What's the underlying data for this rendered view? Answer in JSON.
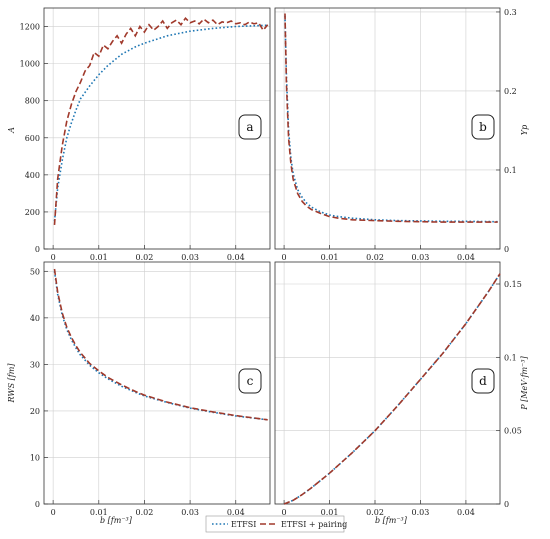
{
  "legend": [
    {
      "label": "ETFSI",
      "color": "#1f77b4",
      "style": "dotted"
    },
    {
      "label": "ETFSI + pairing",
      "color": "#a0392b",
      "style": "dashed"
    }
  ],
  "xlabel_left": "b [fm⁻³]",
  "xlabel_right": "b [fm⁻³]",
  "chart_data": [
    {
      "type": "line",
      "badge": "a",
      "ylabel": "A",
      "xlim": [
        -0.002,
        0.0475
      ],
      "ylim": [
        0,
        1300
      ],
      "xticks": [
        0,
        0.01,
        0.02,
        0.03,
        0.04
      ],
      "xtick_labels": [
        "0",
        "0.01",
        "0.02",
        "0.03",
        "0.04"
      ],
      "yticks": [
        0,
        200,
        400,
        600,
        800,
        1000,
        1200
      ],
      "ytick_labels": [
        "0",
        "200",
        "400",
        "600",
        "800",
        "1000",
        "1200"
      ],
      "series": [
        {
          "name": "ETFSI",
          "x": [
            0.0003,
            0.001,
            0.002,
            0.003,
            0.004,
            0.005,
            0.006,
            0.008,
            0.01,
            0.012,
            0.015,
            0.018,
            0.02,
            0.025,
            0.03,
            0.035,
            0.04,
            0.045,
            0.047
          ],
          "y": [
            150,
            330,
            480,
            600,
            680,
            750,
            810,
            880,
            940,
            990,
            1050,
            1090,
            1110,
            1150,
            1175,
            1190,
            1200,
            1205,
            1207
          ]
        },
        {
          "name": "ETFSI + pairing",
          "x": [
            0.0003,
            0.001,
            0.002,
            0.003,
            0.004,
            0.005,
            0.006,
            0.007,
            0.008,
            0.009,
            0.01,
            0.011,
            0.012,
            0.013,
            0.014,
            0.015,
            0.016,
            0.017,
            0.018,
            0.019,
            0.02,
            0.021,
            0.022,
            0.023,
            0.024,
            0.025,
            0.026,
            0.027,
            0.028,
            0.029,
            0.03,
            0.031,
            0.032,
            0.033,
            0.034,
            0.035,
            0.036,
            0.037,
            0.038,
            0.039,
            0.04,
            0.041,
            0.042,
            0.043,
            0.044,
            0.045,
            0.046,
            0.047
          ],
          "y": [
            130,
            380,
            560,
            690,
            780,
            850,
            900,
            960,
            990,
            1060,
            1040,
            1100,
            1080,
            1120,
            1150,
            1110,
            1160,
            1190,
            1150,
            1200,
            1170,
            1210,
            1180,
            1200,
            1230,
            1190,
            1220,
            1235,
            1210,
            1245,
            1220,
            1230,
            1215,
            1240,
            1220,
            1235,
            1210,
            1225,
            1220,
            1230,
            1215,
            1220,
            1210,
            1225,
            1215,
            1220,
            1180,
            1210
          ]
        }
      ]
    },
    {
      "type": "line",
      "badge": "b",
      "ylabel": "Yp",
      "xlim": [
        -0.002,
        0.0475
      ],
      "ylim": [
        0,
        0.305
      ],
      "xticks": [
        0,
        0.01,
        0.02,
        0.03,
        0.04
      ],
      "xtick_labels": [
        "0",
        "0.01",
        "0.02",
        "0.03",
        "0.04"
      ],
      "yticks": [
        0,
        0.1,
        0.2,
        0.3
      ],
      "ytick_labels": [
        "0",
        "0.1",
        "0.2",
        "0.3"
      ],
      "series": [
        {
          "name": "ETFSI",
          "x": [
            0.0002,
            0.0005,
            0.001,
            0.0015,
            0.002,
            0.003,
            0.004,
            0.005,
            0.006,
            0.008,
            0.01,
            0.012,
            0.015,
            0.02,
            0.025,
            0.03,
            0.035,
            0.04,
            0.047
          ],
          "y": [
            0.295,
            0.22,
            0.15,
            0.115,
            0.095,
            0.075,
            0.065,
            0.058,
            0.053,
            0.047,
            0.043,
            0.041,
            0.039,
            0.037,
            0.036,
            0.0355,
            0.035,
            0.035,
            0.0345
          ]
        },
        {
          "name": "ETFSI + pairing",
          "x": [
            0.0002,
            0.0005,
            0.001,
            0.0015,
            0.002,
            0.003,
            0.004,
            0.005,
            0.006,
            0.008,
            0.01,
            0.012,
            0.015,
            0.02,
            0.025,
            0.03,
            0.035,
            0.04,
            0.047
          ],
          "y": [
            0.298,
            0.21,
            0.14,
            0.108,
            0.088,
            0.07,
            0.06,
            0.054,
            0.05,
            0.045,
            0.041,
            0.039,
            0.037,
            0.036,
            0.035,
            0.0345,
            0.034,
            0.034,
            0.034
          ]
        }
      ]
    },
    {
      "type": "line",
      "badge": "c",
      "ylabel": "RWS [fm]",
      "xlim": [
        -0.002,
        0.0475
      ],
      "ylim": [
        0,
        52
      ],
      "xticks": [
        0,
        0.01,
        0.02,
        0.03,
        0.04
      ],
      "xtick_labels": [
        "0",
        "0.01",
        "0.02",
        "0.03",
        "0.04"
      ],
      "yticks": [
        0,
        10,
        20,
        30,
        40,
        50
      ],
      "ytick_labels": [
        "0",
        "10",
        "20",
        "30",
        "40",
        "50"
      ],
      "series": [
        {
          "name": "ETFSI",
          "x": [
            0.0003,
            0.001,
            0.002,
            0.003,
            0.004,
            0.005,
            0.006,
            0.008,
            0.01,
            0.012,
            0.015,
            0.018,
            0.02,
            0.025,
            0.03,
            0.035,
            0.04,
            0.047
          ],
          "y": [
            50,
            45,
            40.5,
            37.5,
            35.3,
            33.5,
            32.0,
            29.8,
            28.2,
            26.9,
            25.3,
            24.0,
            23.2,
            21.8,
            20.6,
            19.7,
            18.9,
            18.1
          ]
        },
        {
          "name": "ETFSI + pairing",
          "x": [
            0.0003,
            0.001,
            0.002,
            0.003,
            0.004,
            0.005,
            0.006,
            0.008,
            0.01,
            0.012,
            0.015,
            0.018,
            0.02,
            0.025,
            0.03,
            0.035,
            0.04,
            0.047
          ],
          "y": [
            50.5,
            45.5,
            41,
            38,
            35.8,
            34.0,
            32.5,
            30.2,
            28.6,
            27.2,
            25.6,
            24.2,
            23.4,
            21.9,
            20.7,
            19.8,
            19.0,
            18.1
          ]
        }
      ]
    },
    {
      "type": "line",
      "badge": "d",
      "ylabel": "P [MeV·fm⁻³]",
      "xlim": [
        -0.002,
        0.0475
      ],
      "ylim": [
        0,
        0.165
      ],
      "xticks": [
        0,
        0.01,
        0.02,
        0.03,
        0.04
      ],
      "xtick_labels": [
        "0",
        "0.01",
        "0.02",
        "0.03",
        "0.04"
      ],
      "yticks": [
        0,
        0.05,
        0.1,
        0.15
      ],
      "ytick_labels": [
        "0",
        "0.05",
        "0.1",
        "0.15"
      ],
      "series": [
        {
          "name": "ETFSI",
          "x": [
            0,
            0.002,
            0.004,
            0.006,
            0.008,
            0.01,
            0.015,
            0.02,
            0.025,
            0.03,
            0.035,
            0.04,
            0.045,
            0.0475
          ],
          "y": [
            0,
            0.0025,
            0.0065,
            0.011,
            0.016,
            0.021,
            0.035,
            0.05,
            0.067,
            0.085,
            0.103,
            0.123,
            0.145,
            0.157
          ]
        },
        {
          "name": "ETFSI + pairing",
          "x": [
            0,
            0.002,
            0.004,
            0.006,
            0.008,
            0.01,
            0.015,
            0.02,
            0.025,
            0.03,
            0.035,
            0.04,
            0.045,
            0.0475
          ],
          "y": [
            0,
            0.0025,
            0.0065,
            0.011,
            0.016,
            0.021,
            0.035,
            0.05,
            0.067,
            0.085,
            0.103,
            0.123,
            0.145,
            0.157
          ]
        }
      ]
    }
  ]
}
